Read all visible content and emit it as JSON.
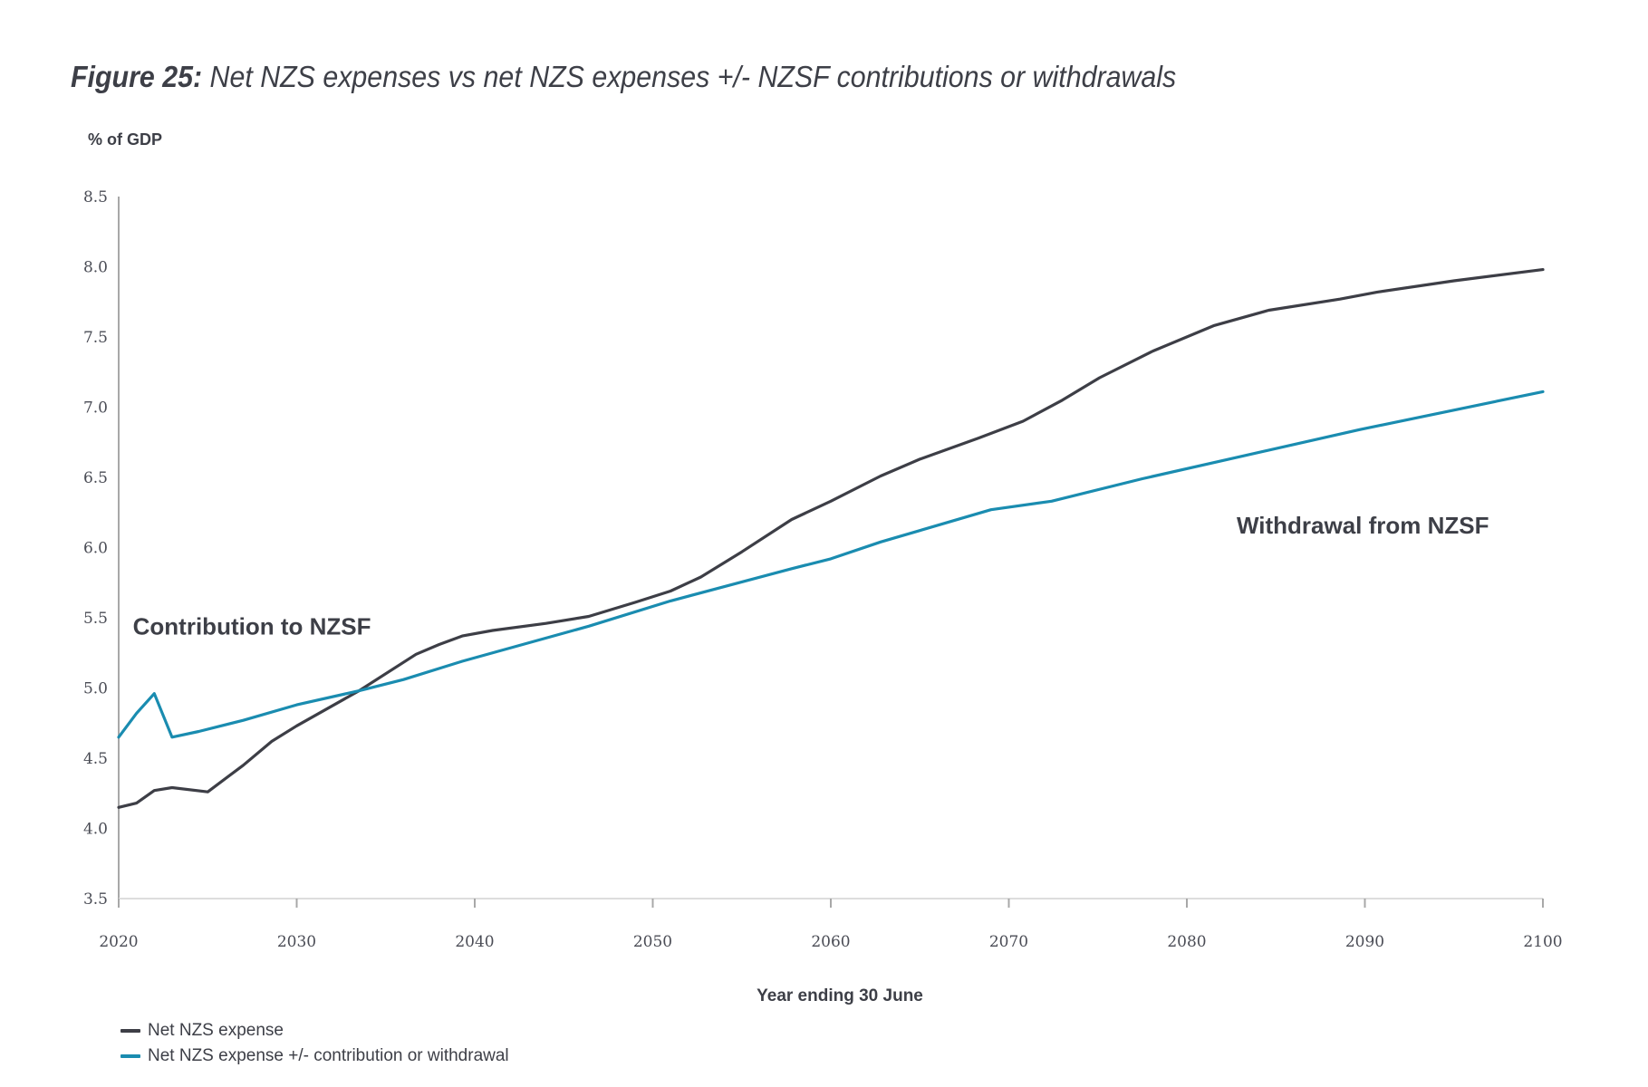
{
  "title": {
    "bold": "Figure 25:",
    "rest": " Net NZS expenses vs net NZS expenses +/- NZSF contributions or withdrawals"
  },
  "colors": {
    "net_nzs_expense": "#3d3e46",
    "net_nzs_adjusted": "#1a8cb0",
    "axis": "#b0b0b0",
    "text": "#3d3f47"
  },
  "legend": [
    {
      "label": "Net NZS expense",
      "color_key": "net_nzs_expense"
    },
    {
      "label": "Net NZS expense +/- contribution or withdrawal",
      "color_key": "net_nzs_adjusted"
    }
  ],
  "chart_data": {
    "type": "line",
    "title": "Figure 25: Net NZS expenses vs net NZS expenses +/- NZSF contributions or withdrawals",
    "xlabel": "Year ending 30 June",
    "ylabel": "% of GDP",
    "xlim": [
      2020,
      2100
    ],
    "ylim": [
      3.5,
      8.5
    ],
    "xticks": [
      2020,
      2030,
      2040,
      2050,
      2060,
      2070,
      2080,
      2090,
      2100
    ],
    "xtick_labels": [
      "2020",
      "2030",
      "2040",
      "2050",
      "2060",
      "2070",
      "2080",
      "2090",
      "2100"
    ],
    "yticks": [
      3.5,
      4.0,
      4.5,
      5.0,
      5.5,
      6.0,
      6.5,
      7.0,
      7.5,
      8.0,
      8.5
    ],
    "ytick_labels": [
      "3.5",
      "4.0",
      "4.5",
      "5.0",
      "5.5",
      "6.0",
      "6.5",
      "7.0",
      "7.5",
      "8.0",
      "8.5"
    ],
    "grid": false,
    "legend_position": "bottom-left",
    "annotations": [
      {
        "text": "Contribution to NZSF",
        "x": 2021,
        "y": 5.38
      },
      {
        "text": "Withdrawal from NZSF",
        "x": 2083,
        "y": 6.1
      }
    ],
    "series": [
      {
        "name": "Net NZS expense",
        "color_key": "net_nzs_expense",
        "points": [
          [
            2020,
            4.15
          ],
          [
            2021,
            4.18
          ],
          [
            2022,
            4.27
          ],
          [
            2023,
            4.29
          ],
          [
            2025,
            4.26
          ],
          [
            2027,
            4.45
          ],
          [
            2028.6,
            4.62
          ],
          [
            2030,
            4.73
          ],
          [
            2033.5,
            4.98
          ],
          [
            2036.7,
            5.24
          ],
          [
            2038,
            5.31
          ],
          [
            2039.3,
            5.37
          ],
          [
            2041,
            5.41
          ],
          [
            2044,
            5.46
          ],
          [
            2046.4,
            5.51
          ],
          [
            2049,
            5.61
          ],
          [
            2051,
            5.69
          ],
          [
            2052.7,
            5.79
          ],
          [
            2055,
            5.97
          ],
          [
            2057.8,
            6.2
          ],
          [
            2060,
            6.33
          ],
          [
            2062.8,
            6.51
          ],
          [
            2065,
            6.63
          ],
          [
            2068.3,
            6.78
          ],
          [
            2070.8,
            6.9
          ],
          [
            2073,
            7.05
          ],
          [
            2075.1,
            7.21
          ],
          [
            2078.1,
            7.4
          ],
          [
            2081.5,
            7.58
          ],
          [
            2084.6,
            7.69
          ],
          [
            2088.6,
            7.77
          ],
          [
            2090.7,
            7.82
          ],
          [
            2095,
            7.9
          ],
          [
            2100,
            7.98
          ]
        ]
      },
      {
        "name": "Net NZS expense +/- contribution or withdrawal",
        "color_key": "net_nzs_adjusted",
        "points": [
          [
            2020,
            4.65
          ],
          [
            2021,
            4.82
          ],
          [
            2022,
            4.96
          ],
          [
            2023,
            4.65
          ],
          [
            2024.5,
            4.69
          ],
          [
            2027,
            4.77
          ],
          [
            2030,
            4.88
          ],
          [
            2033.5,
            4.98
          ],
          [
            2036,
            5.06
          ],
          [
            2039.3,
            5.19
          ],
          [
            2046.4,
            5.44
          ],
          [
            2051,
            5.62
          ],
          [
            2057.8,
            5.85
          ],
          [
            2060,
            5.92
          ],
          [
            2062.8,
            6.04
          ],
          [
            2069,
            6.27
          ],
          [
            2072.4,
            6.33
          ],
          [
            2077.5,
            6.49
          ],
          [
            2089.7,
            6.84
          ],
          [
            2100,
            7.11
          ]
        ]
      }
    ]
  }
}
